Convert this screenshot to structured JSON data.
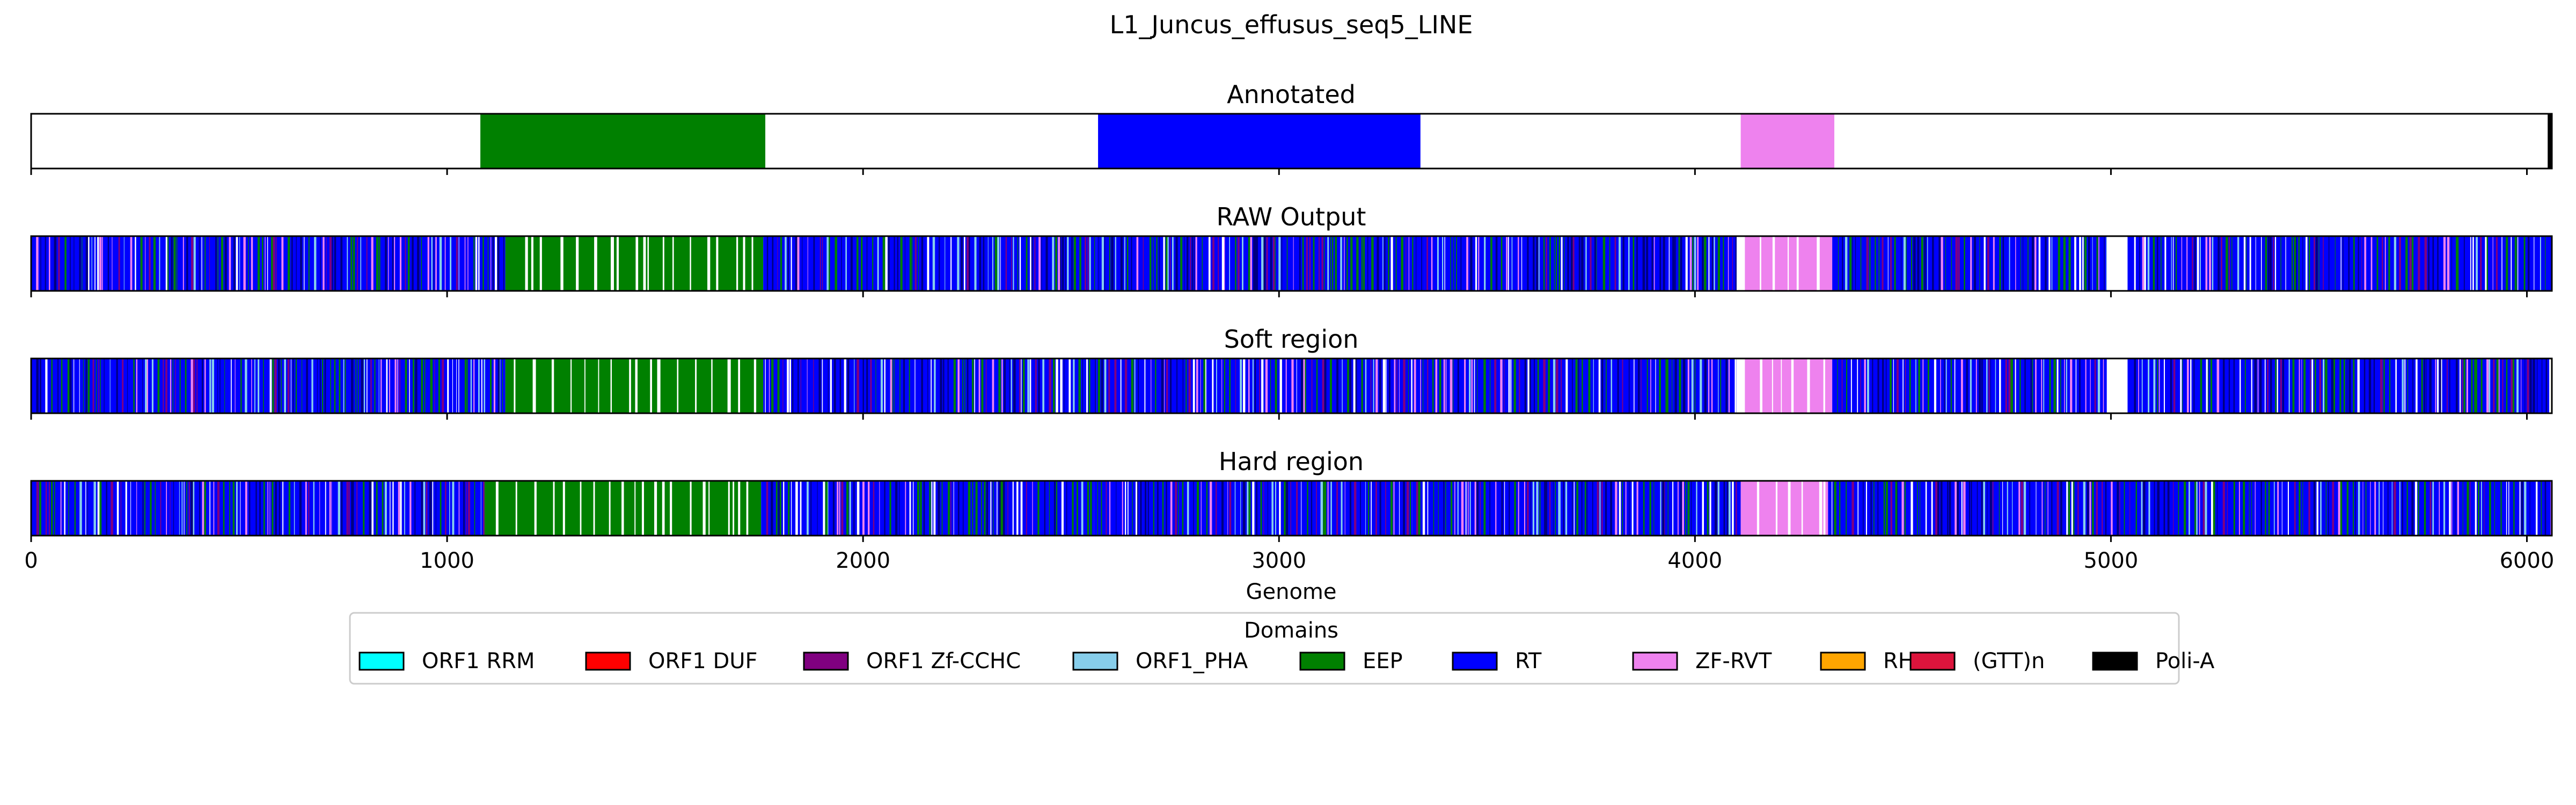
{
  "chart_data": {
    "type": "heatmap",
    "title": "L1_Juncus_effusus_seq5_LINE",
    "xlabel": "Genome",
    "xlim": [
      0,
      6060
    ],
    "xticks": [
      0,
      1000,
      2000,
      3000,
      4000,
      5000,
      6000
    ],
    "xtick_labels": [
      "0",
      "1000",
      "2000",
      "3000",
      "4000",
      "5000",
      "6000"
    ],
    "domain_colors": {
      "ORF1 RRM": "#00ffff",
      "ORF1 DUF": "#ff0000",
      "ORF1 Zf-CCHC": "#800080",
      "ORF1_PHA": "#87ceeb",
      "EEP": "#008000",
      "RT": "#0000ff",
      "ZF-RVT": "#ee82ee",
      "RH": "#ffa500",
      "(GTT)n": "#dc143c",
      "Poli-A": "#000000"
    },
    "tracks": [
      {
        "title": "Annotated",
        "segments": [
          {
            "start": 1080,
            "end": 1765,
            "domain": "EEP"
          },
          {
            "start": 2565,
            "end": 3340,
            "domain": "RT"
          },
          {
            "start": 4110,
            "end": 4335,
            "domain": "ZF-RVT"
          },
          {
            "start": 6050,
            "end": 6060,
            "domain": "Poli-A"
          }
        ]
      },
      {
        "title": "RAW Output",
        "segments": [
          {
            "start": 0,
            "end": 1140,
            "domain": "RT"
          },
          {
            "start": 1140,
            "end": 1760,
            "domain": "EEP"
          },
          {
            "start": 1760,
            "end": 2560,
            "domain": "RT"
          },
          {
            "start": 2560,
            "end": 3350,
            "domain": "RT"
          },
          {
            "start": 3350,
            "end": 4100,
            "domain": "RT"
          },
          {
            "start": 4120,
            "end": 4330,
            "domain": "ZF-RVT"
          },
          {
            "start": 4330,
            "end": 4990,
            "domain": "RT"
          },
          {
            "start": 5040,
            "end": 6060,
            "domain": "RT"
          }
        ]
      },
      {
        "title": "Soft region",
        "segments": [
          {
            "start": 0,
            "end": 1140,
            "domain": "RT"
          },
          {
            "start": 1140,
            "end": 1760,
            "domain": "EEP"
          },
          {
            "start": 1760,
            "end": 2560,
            "domain": "RT"
          },
          {
            "start": 2560,
            "end": 3350,
            "domain": "RT"
          },
          {
            "start": 3350,
            "end": 4100,
            "domain": "RT"
          },
          {
            "start": 4120,
            "end": 4330,
            "domain": "ZF-RVT"
          },
          {
            "start": 4330,
            "end": 4990,
            "domain": "RT"
          },
          {
            "start": 5040,
            "end": 6060,
            "domain": "RT"
          }
        ]
      },
      {
        "title": "Hard region",
        "segments": [
          {
            "start": 0,
            "end": 1090,
            "domain": "RT"
          },
          {
            "start": 1090,
            "end": 1755,
            "domain": "EEP"
          },
          {
            "start": 1755,
            "end": 2555,
            "domain": "RT"
          },
          {
            "start": 2555,
            "end": 3320,
            "domain": "RT"
          },
          {
            "start": 3320,
            "end": 4110,
            "domain": "RT"
          },
          {
            "start": 4110,
            "end": 4320,
            "domain": "ZF-RVT"
          },
          {
            "start": 4320,
            "end": 6060,
            "domain": "RT"
          }
        ]
      }
    ],
    "legend": {
      "title": "Domains",
      "placement": "bottom-center",
      "entries": [
        "ORF1 RRM",
        "ORF1 DUF",
        "ORF1 Zf-CCHC",
        "ORF1_PHA",
        "EEP",
        "RT",
        "ZF-RVT",
        "RH",
        "(GTT)n",
        "Poli-A"
      ]
    },
    "grid": false
  }
}
